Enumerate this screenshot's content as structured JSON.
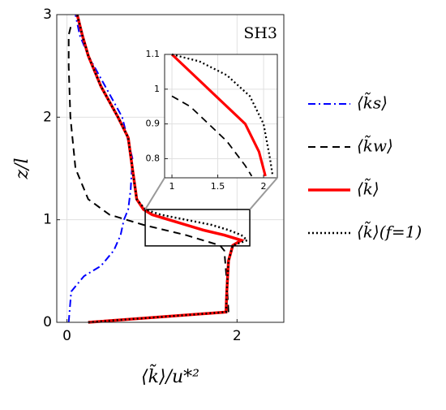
{
  "chart_data": [
    {
      "type": "line",
      "annotation": "SH3",
      "xlabel": "⟨k̃⟩/u*²",
      "ylabel": "z/l",
      "xlim": [
        -0.12,
        2.55
      ],
      "ylim": [
        0,
        3
      ],
      "xticks": [
        0,
        2
      ],
      "yticks": [
        0,
        1,
        2,
        3
      ],
      "grid": true,
      "legend": "right",
      "series": [
        {
          "name": "⟨k̃s⟩",
          "color": "#0000ff",
          "dash": "dashdot",
          "x": [
            0.02,
            0.05,
            0.2,
            0.4,
            0.55,
            0.63,
            0.67,
            0.72,
            0.75,
            0.77,
            0.65,
            0.45,
            0.25,
            0.15,
            0.1
          ],
          "y": [
            0,
            0.3,
            0.45,
            0.55,
            0.7,
            0.85,
            1.0,
            1.1,
            1.3,
            1.6,
            2.0,
            2.3,
            2.6,
            2.8,
            3
          ]
        },
        {
          "name": "⟨k̃w⟩",
          "color": "#000000",
          "dash": "dashed",
          "x": [
            1.9,
            1.88,
            1.85,
            1.8,
            1.4,
            0.9,
            0.5,
            0.25,
            0.1,
            0.04,
            0.02,
            0.02,
            0.05
          ],
          "y": [
            0.1,
            0.4,
            0.7,
            0.75,
            0.85,
            0.95,
            1.05,
            1.2,
            1.5,
            2.0,
            2.5,
            2.8,
            2.9
          ]
        },
        {
          "name": "⟨k̃⟩",
          "color": "#ff0000",
          "dash": "solid",
          "x": [
            0.25,
            1.87,
            1.88,
            1.9,
            1.95,
            2.05,
            1.85,
            1.6,
            1.4,
            1.2,
            1.0,
            0.9,
            0.82,
            0.77,
            0.72,
            0.6,
            0.4,
            0.25,
            0.18,
            0.12
          ],
          "y": [
            0,
            0.1,
            0.3,
            0.6,
            0.75,
            0.8,
            0.85,
            0.9,
            0.95,
            1.0,
            1.05,
            1.1,
            1.2,
            1.5,
            1.8,
            2.0,
            2.3,
            2.6,
            2.8,
            3
          ]
        },
        {
          "name": "⟨k̃⟩(f=1)",
          "color": "#000000",
          "dash": "dotted",
          "x": [
            0.25,
            1.87,
            1.88,
            1.9,
            1.95,
            2.12,
            2.05,
            1.9,
            1.7,
            1.4,
            1.1,
            0.92,
            0.82,
            0.77,
            0.72,
            0.6,
            0.4,
            0.25,
            0.18,
            0.12
          ],
          "y": [
            0,
            0.1,
            0.3,
            0.6,
            0.75,
            0.8,
            0.85,
            0.9,
            0.95,
            1.0,
            1.05,
            1.1,
            1.2,
            1.5,
            1.8,
            2.0,
            2.3,
            2.6,
            2.8,
            3
          ]
        }
      ]
    },
    {
      "type": "line",
      "xlim": [
        0.92,
        2.15
      ],
      "ylim": [
        0.745,
        1.1
      ],
      "xticks": [
        1,
        1.5,
        2
      ],
      "yticks": [
        0.8,
        0.9,
        1,
        1.1
      ],
      "grid": true,
      "series": [
        {
          "color": "#000000",
          "dash": "dashed",
          "x": [
            1,
            1.2,
            1.4,
            1.6,
            1.8,
            1.87
          ],
          "y": [
            0.98,
            0.95,
            0.9,
            0.85,
            0.78,
            0.75
          ]
        },
        {
          "color": "#ff0000",
          "dash": "solid",
          "x": [
            1,
            1.2,
            1.4,
            1.6,
            1.8,
            1.95,
            2.02
          ],
          "y": [
            1.1,
            1.05,
            1.0,
            0.95,
            0.9,
            0.82,
            0.75
          ]
        },
        {
          "color": "#000000",
          "dash": "dotted",
          "x": [
            1,
            1.3,
            1.6,
            1.85,
            2.0,
            2.07,
            2.1
          ],
          "y": [
            1.1,
            1.08,
            1.04,
            0.98,
            0.9,
            0.8,
            0.75
          ]
        }
      ]
    }
  ]
}
